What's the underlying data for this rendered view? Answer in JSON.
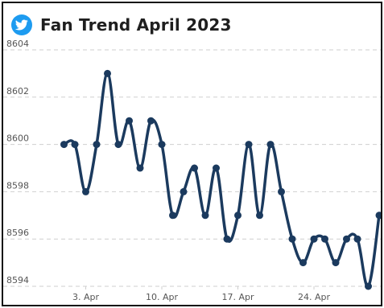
{
  "header": {
    "title": "Fan Trend April 2023",
    "logo_icon": "twitter-bird-icon",
    "logo_color": "#1d9bf0"
  },
  "colors": {
    "line": "#1b3a5e",
    "grid": "#cfcfcf",
    "text": "#1f1f1f",
    "tick_text": "#555555"
  },
  "chart_data": {
    "type": "line",
    "title": "Fan Trend April 2023",
    "xlabel": "",
    "ylabel": "",
    "x": [
      "2023-04-01",
      "2023-04-02",
      "2023-04-03",
      "2023-04-04",
      "2023-04-05",
      "2023-04-06",
      "2023-04-07",
      "2023-04-08",
      "2023-04-09",
      "2023-04-10",
      "2023-04-11",
      "2023-04-12",
      "2023-04-13",
      "2023-04-14",
      "2023-04-15",
      "2023-04-16",
      "2023-04-17",
      "2023-04-18",
      "2023-04-19",
      "2023-04-20",
      "2023-04-21",
      "2023-04-22",
      "2023-04-23",
      "2023-04-24",
      "2023-04-25",
      "2023-04-26",
      "2023-04-27",
      "2023-04-28",
      "2023-04-29",
      "2023-04-30"
    ],
    "series": [
      {
        "values": [
          8600,
          8600,
          8598,
          8600,
          8603,
          8600,
          8601,
          8599,
          8601,
          8600,
          8597,
          8598,
          8599,
          8597,
          8599,
          8596,
          8597,
          8600,
          8597,
          8600,
          8598,
          8596,
          8595,
          8596,
          8596,
          8595,
          8596,
          8596,
          8594,
          8597
        ]
      }
    ],
    "ylim": [
      8594,
      8604
    ],
    "yticks": [
      8594,
      8596,
      8598,
      8600,
      8602,
      8604
    ],
    "ytick_labels": [
      "8594",
      "8596",
      "8598",
      "8600",
      "8602",
      "8604"
    ],
    "xticks": [
      "2023-04-03",
      "2023-04-10",
      "2023-04-17",
      "2023-04-24"
    ],
    "xtick_labels": [
      "3. Apr",
      "10. Apr",
      "17. Apr",
      "24. Apr"
    ],
    "xlim": [
      "2023-03-31",
      "2023-04-30"
    ],
    "grid": "horizontal dashed",
    "legend": "none",
    "markers": "filled circles"
  }
}
